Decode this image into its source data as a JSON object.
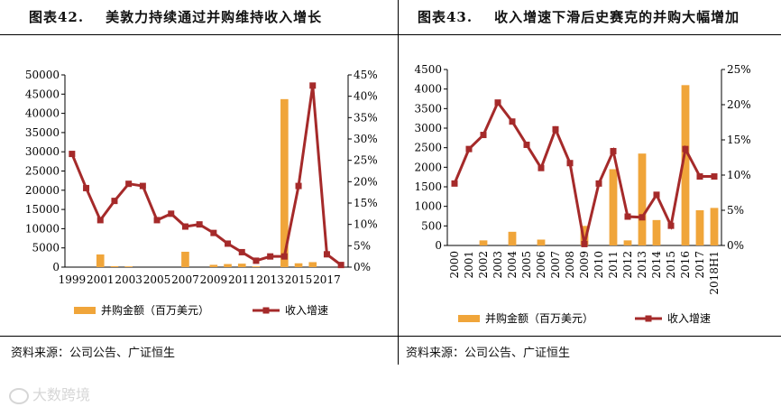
{
  "charts": [
    {
      "number": "图表42.",
      "title": "美敦力持续通过并购维持收入增长",
      "source": "资料来源：公司公告、广证恒生"
    },
    {
      "number": "图表43.",
      "title": "收入增速下滑后史赛克的并购大幅增加",
      "source": "资料来源：公司公告、广证恒生"
    }
  ],
  "watermark": "大数跨境",
  "colors": {
    "bar": "#f0a53a",
    "line": "#a52a2a",
    "marker": "#a52a2a"
  },
  "chart_data": [
    {
      "type": "bar+line",
      "x": [
        1999,
        2000,
        2001,
        2002,
        2003,
        2004,
        2005,
        2006,
        2007,
        2008,
        2009,
        2010,
        2011,
        2012,
        2013,
        2014,
        2015,
        2016,
        2017,
        2018
      ],
      "x_tick_labels": [
        "1999",
        "2001",
        "2003",
        "2005",
        "2007",
        "2009",
        "2011",
        "2013",
        "2015",
        "2017"
      ],
      "series": [
        {
          "name": "并购金额（百万美元）",
          "type": "bar",
          "axis": "left",
          "values": [
            0,
            0,
            3300,
            250,
            200,
            0,
            0,
            0,
            4000,
            0,
            600,
            800,
            900,
            200,
            0,
            43700,
            1000,
            1300,
            0,
            0
          ]
        },
        {
          "name": "收入增速",
          "type": "line",
          "axis": "right",
          "values": [
            0.265,
            0.185,
            0.11,
            0.155,
            0.195,
            0.19,
            0.11,
            0.125,
            0.095,
            0.1,
            0.08,
            0.055,
            0.035,
            0.015,
            0.025,
            0.025,
            0.19,
            0.425,
            0.03,
            0.005
          ]
        }
      ],
      "ylim_left": [
        0,
        50000
      ],
      "yticks_left": [
        "0",
        "5000",
        "10000",
        "15000",
        "20000",
        "25000",
        "30000",
        "35000",
        "40000",
        "45000",
        "50000"
      ],
      "ylim_right": [
        0,
        0.45
      ],
      "yticks_right": [
        "0%",
        "5%",
        "10%",
        "15%",
        "20%",
        "25%",
        "30%",
        "35%",
        "40%",
        "45%"
      ],
      "legend": [
        "并购金额（百万美元）",
        "收入增速"
      ],
      "legend_position": "bottom"
    },
    {
      "type": "bar+line",
      "categories": [
        "2000",
        "2001",
        "2002",
        "2003",
        "2004",
        "2005",
        "2006",
        "2007",
        "2008",
        "2009",
        "2010",
        "2011",
        "2012",
        "2013",
        "2014",
        "2015",
        "2016",
        "2017",
        "2018H1"
      ],
      "series": [
        {
          "name": "并购金额（百万美元）",
          "type": "bar",
          "axis": "left",
          "values": [
            0,
            0,
            130,
            0,
            350,
            0,
            150,
            0,
            0,
            500,
            0,
            1950,
            130,
            2350,
            650,
            0,
            4100,
            900,
            960
          ]
        },
        {
          "name": "收入增速",
          "type": "line",
          "axis": "right",
          "values": [
            0.088,
            0.137,
            0.157,
            0.203,
            0.176,
            0.143,
            0.11,
            0.165,
            0.117,
            0.002,
            0.088,
            0.134,
            0.041,
            0.04,
            0.072,
            0.028,
            0.137,
            0.098,
            0.098
          ]
        }
      ],
      "ylim_left": [
        0,
        4500
      ],
      "yticks_left": [
        "0",
        "500",
        "1000",
        "1500",
        "2000",
        "2500",
        "3000",
        "3500",
        "4000",
        "4500"
      ],
      "ylim_right": [
        0,
        0.25
      ],
      "yticks_right": [
        "0%",
        "5%",
        "10%",
        "15%",
        "20%",
        "25%"
      ],
      "legend": [
        "并购金额（百万美元）",
        "收入增速"
      ],
      "legend_position": "bottom"
    }
  ]
}
